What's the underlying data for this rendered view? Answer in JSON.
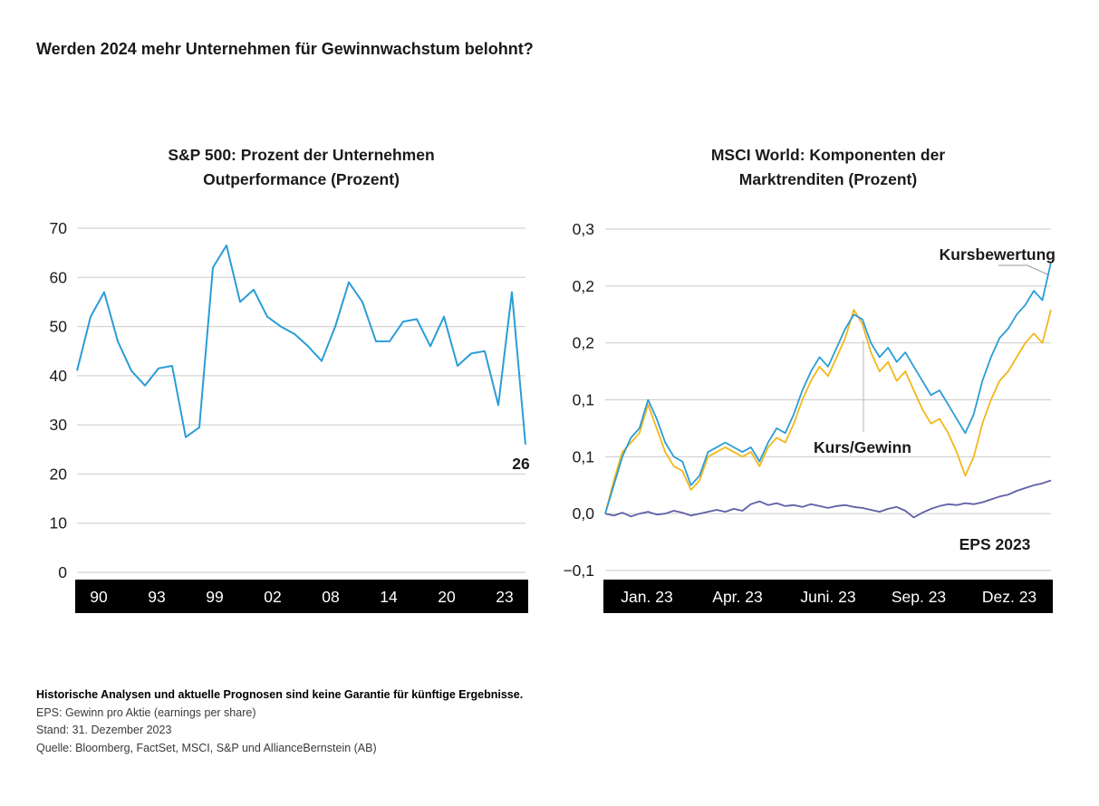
{
  "page_title": "Werden 2024 mehr Unternehmen für Gewinnwachstum belohnt?",
  "colors": {
    "line_blue": "#2A9DD6",
    "line_yellow": "#F3B71C",
    "line_purple": "#5F5FA7",
    "axis_band": "#000000",
    "grid": "#CBCBCB",
    "connector": "#9A9A9A",
    "text": "#1A1A1A"
  },
  "chart_data": [
    {
      "type": "line",
      "title_lines": [
        "S&P 500: Prozent der Unternehmen",
        "Outperformance (Prozent)"
      ],
      "xlabel": "",
      "ylabel": "",
      "ylim": [
        0,
        70
      ],
      "y_ticks": [
        70,
        60,
        50,
        40,
        30,
        20,
        10,
        0
      ],
      "x_tick_labels": [
        "90",
        "93",
        "99",
        "02",
        "08",
        "14",
        "20",
        "23"
      ],
      "x": [
        1990,
        1991,
        1992,
        1993,
        1994,
        1995,
        1996,
        1997,
        1998,
        1999,
        2000,
        2001,
        2002,
        2003,
        2004,
        2005,
        2006,
        2007,
        2008,
        2009,
        2010,
        2011,
        2012,
        2013,
        2014,
        2015,
        2016,
        2017,
        2018,
        2019,
        2020,
        2021,
        2022,
        2023
      ],
      "values": [
        41,
        52,
        57,
        47,
        41,
        38,
        41.5,
        42,
        27.5,
        29.5,
        62,
        66.5,
        55,
        57.5,
        52,
        50,
        48.5,
        46,
        43,
        50,
        59,
        55,
        47,
        47,
        51,
        51.5,
        46,
        52,
        42,
        44.5,
        45,
        34,
        57,
        26
      ],
      "series_color": "line_blue",
      "end_value_label": "26",
      "grid": true,
      "legend": false
    },
    {
      "type": "line",
      "title_lines": [
        "MSCI World: Komponenten der",
        "Marktrenditen (Prozent)"
      ],
      "xlabel": "",
      "ylabel": "",
      "ylim": [
        -0.06,
        0.3
      ],
      "y_tick_labels": [
        "0,3",
        "0,2",
        "0,2",
        "0,1",
        "0,1",
        "0,0",
        "−0,1"
      ],
      "y_tick_values": [
        0.3,
        0.24,
        0.18,
        0.12,
        0.06,
        0.0,
        -0.06
      ],
      "x_tick_labels": [
        "Jan. 23",
        "Apr. 23",
        "Juni. 23",
        "Sep. 23",
        "Dez. 23"
      ],
      "series": [
        {
          "name": "EPS 2023",
          "color": "line_purple",
          "values": [
            0.0,
            -0.002,
            0.001,
            -0.003,
            0.0,
            0.002,
            -0.001,
            0.0,
            0.003,
            0.001,
            -0.002,
            0.0,
            0.002,
            0.004,
            0.002,
            0.005,
            0.003,
            0.01,
            0.013,
            0.009,
            0.011,
            0.008,
            0.009,
            0.007,
            0.01,
            0.008,
            0.006,
            0.008,
            0.009,
            0.007,
            0.006,
            0.004,
            0.002,
            0.005,
            0.007,
            0.003,
            -0.004,
            0.001,
            0.005,
            0.008,
            0.01,
            0.009,
            0.011,
            0.01,
            0.012,
            0.015,
            0.018,
            0.02,
            0.024,
            0.027,
            0.03,
            0.032,
            0.035
          ]
        },
        {
          "name": "Kurs/Gewinn",
          "color": "line_yellow",
          "values": [
            0.0,
            0.035,
            0.065,
            0.075,
            0.085,
            0.115,
            0.09,
            0.065,
            0.05,
            0.045,
            0.025,
            0.035,
            0.06,
            0.065,
            0.07,
            0.065,
            0.06,
            0.065,
            0.05,
            0.07,
            0.08,
            0.075,
            0.095,
            0.12,
            0.14,
            0.155,
            0.145,
            0.165,
            0.185,
            0.215,
            0.2,
            0.17,
            0.15,
            0.16,
            0.14,
            0.15,
            0.13,
            0.11,
            0.095,
            0.1,
            0.085,
            0.065,
            0.04,
            0.06,
            0.095,
            0.12,
            0.14,
            0.15,
            0.165,
            0.18,
            0.19,
            0.18,
            0.215
          ]
        },
        {
          "name": "Kursbewertung",
          "color": "line_blue",
          "values": [
            0.0,
            0.03,
            0.06,
            0.08,
            0.09,
            0.12,
            0.1,
            0.075,
            0.06,
            0.055,
            0.03,
            0.04,
            0.065,
            0.07,
            0.075,
            0.07,
            0.065,
            0.07,
            0.055,
            0.075,
            0.09,
            0.085,
            0.105,
            0.13,
            0.15,
            0.165,
            0.155,
            0.175,
            0.195,
            0.21,
            0.205,
            0.18,
            0.165,
            0.175,
            0.16,
            0.17,
            0.155,
            0.14,
            0.125,
            0.13,
            0.115,
            0.1,
            0.085,
            0.105,
            0.14,
            0.165,
            0.185,
            0.195,
            0.21,
            0.22,
            0.235,
            0.225,
            0.265
          ]
        }
      ],
      "annotations": [
        {
          "text": "Kursbewertung",
          "target_series": "Kursbewertung"
        },
        {
          "text": "Kurs/Gewinn",
          "target_series": "Kurs/Gewinn"
        },
        {
          "text": "EPS 2023",
          "target_series": "EPS 2023"
        }
      ],
      "grid": true,
      "legend": false
    }
  ],
  "footnotes": [
    {
      "text": "Historische Analysen und aktuelle Prognosen sind keine Garantie für künftige Ergebnisse.",
      "bold": true
    },
    {
      "text": "EPS: Gewinn pro Aktie (earnings per share)",
      "bold": false
    },
    {
      "text": "Stand: 31. Dezember 2023",
      "bold": false
    },
    {
      "text": "Quelle: Bloomberg, FactSet, MSCI, S&P und AllianceBernstein (AB)",
      "bold": false
    }
  ]
}
